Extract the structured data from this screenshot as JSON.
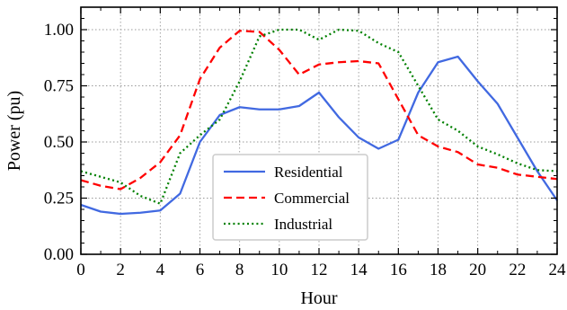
{
  "chart_data": {
    "type": "line",
    "title": "",
    "xlabel": "Hour",
    "ylabel": "Power (pu)",
    "xlim": [
      0,
      24
    ],
    "ylim": [
      0,
      1.1
    ],
    "x_ticks": [
      0,
      2,
      4,
      6,
      8,
      10,
      12,
      14,
      16,
      18,
      20,
      22,
      24
    ],
    "y_ticks": [
      "0.00",
      "0.25",
      "0.50",
      "0.75",
      "1.00"
    ],
    "grid": true,
    "legend_position": "lower-center",
    "x": [
      0,
      1,
      2,
      3,
      4,
      5,
      6,
      7,
      8,
      9,
      10,
      11,
      12,
      13,
      14,
      15,
      16,
      17,
      18,
      19,
      20,
      21,
      22,
      23,
      24
    ],
    "series": [
      {
        "name": "Residential",
        "color": "#4169e1",
        "style": "solid",
        "values": [
          0.22,
          0.19,
          0.18,
          0.185,
          0.195,
          0.27,
          0.5,
          0.62,
          0.655,
          0.645,
          0.645,
          0.66,
          0.72,
          0.61,
          0.52,
          0.47,
          0.51,
          0.72,
          0.855,
          0.88,
          0.77,
          0.67,
          0.52,
          0.37,
          0.24
        ]
      },
      {
        "name": "Commercial",
        "color": "#ff0000",
        "style": "dashed",
        "values": [
          0.33,
          0.305,
          0.29,
          0.34,
          0.41,
          0.53,
          0.78,
          0.92,
          0.995,
          0.99,
          0.91,
          0.8,
          0.845,
          0.855,
          0.86,
          0.85,
          0.69,
          0.53,
          0.48,
          0.455,
          0.4,
          0.385,
          0.355,
          0.345,
          0.335
        ]
      },
      {
        "name": "Industrial",
        "color": "#008000",
        "style": "dotted",
        "values": [
          0.37,
          0.345,
          0.32,
          0.26,
          0.225,
          0.45,
          0.53,
          0.6,
          0.77,
          0.97,
          1.0,
          1.0,
          0.955,
          1.0,
          0.995,
          0.94,
          0.9,
          0.75,
          0.6,
          0.55,
          0.48,
          0.445,
          0.405,
          0.375,
          0.37
        ]
      }
    ]
  }
}
